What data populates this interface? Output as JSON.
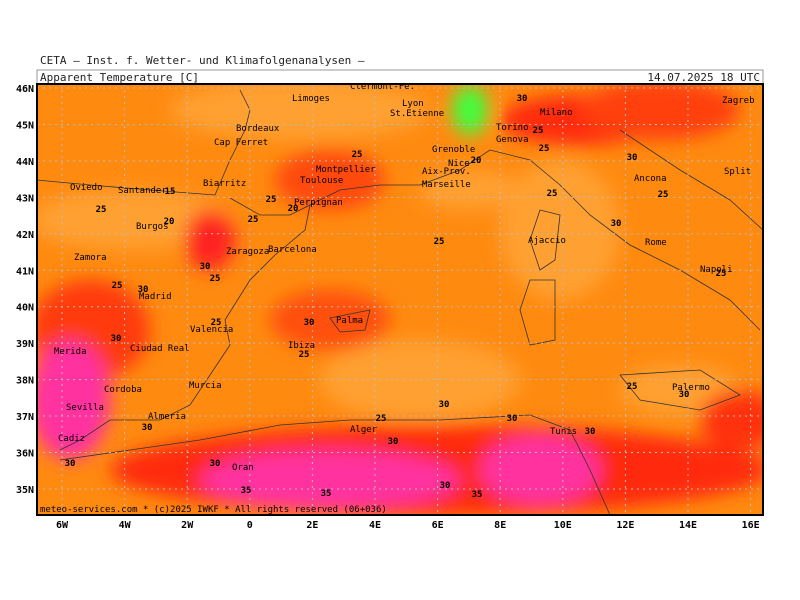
{
  "header": {
    "institute": "CETA — Inst. f. Wetter- und Klimafolgenanalysen —",
    "title": "Apparent Temperature [C]",
    "datetime": "14.07.2025 18 UTC"
  },
  "lat_labels": [
    "46N",
    "45N",
    "44N",
    "43N",
    "42N",
    "41N",
    "40N",
    "39N",
    "38N",
    "37N",
    "36N",
    "35N"
  ],
  "lon_labels": [
    "6W",
    "4W",
    "2W",
    "0",
    "2E",
    "4E",
    "6E",
    "8E",
    "10E",
    "12E",
    "14E",
    "16E"
  ],
  "cities": [
    "Limoges",
    "Lyon",
    "St.Etienne",
    "Bordeaux",
    "Milano",
    "Torino",
    "Genova",
    "Zagreb",
    "Cap Ferret",
    "Grenoble",
    "Montpellier",
    "Nice",
    "Toulouse",
    "Aix-Prov.",
    "Marseille",
    "Ancona",
    "Split",
    "Oviedo",
    "Santander",
    "Biarritz",
    "Perpignan",
    "Burgos",
    "Ajaccio",
    "Rome",
    "Zaragoza",
    "Barcelona",
    "Zamora",
    "Napoli",
    "Madrid",
    "Palma",
    "Valencia",
    "Ibiza",
    "Ciudad Real",
    "Merida",
    "Murcia",
    "Palermo",
    "Cordoba",
    "Sevilla",
    "Almeria",
    "Alger",
    "Tunis",
    "Cadiz",
    "Oran",
    "Clermont-Fe."
  ],
  "contour_labels": [
    "30",
    "25",
    "25",
    "25",
    "20",
    "30",
    "15",
    "25",
    "20",
    "25",
    "20",
    "25",
    "25",
    "25",
    "30",
    "25",
    "25",
    "25",
    "30",
    "25",
    "30",
    "30",
    "25",
    "30",
    "25",
    "25",
    "30",
    "30",
    "25",
    "30",
    "30",
    "30",
    "30",
    "30",
    "35",
    "35",
    "30",
    "35",
    "30"
  ],
  "footer": "meteo-services.com * (c)2025 IWKF * All rights reserved (06+036)"
}
